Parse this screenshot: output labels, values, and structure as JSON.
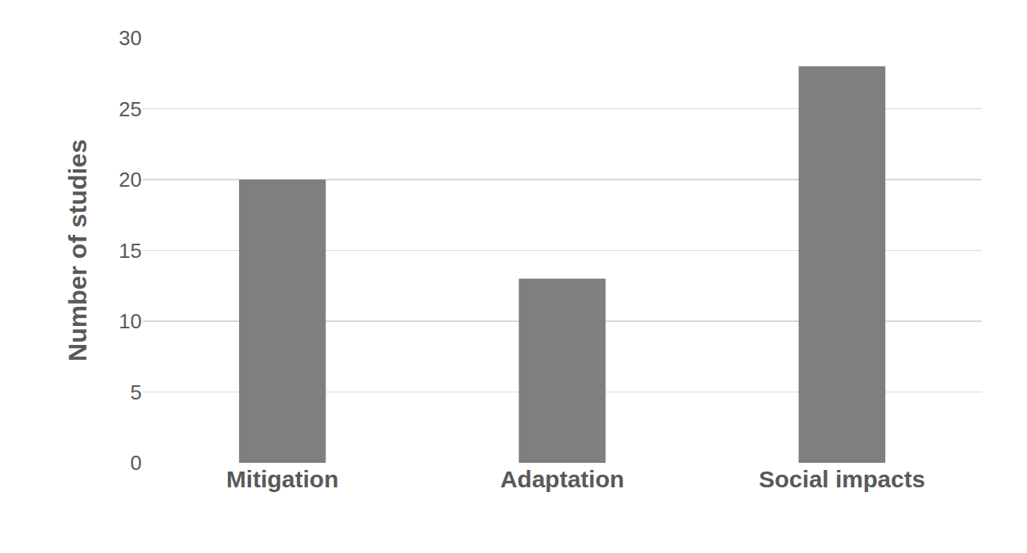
{
  "chart_data": {
    "type": "bar",
    "y_label": "Number of studies",
    "categories": [
      "Mitigation",
      "Adaptation",
      "Social impacts"
    ],
    "values": [
      20,
      13,
      28
    ],
    "color": "#7f7f7f",
    "ylim": [
      0,
      30
    ],
    "yticks": [
      0,
      5,
      10,
      15,
      20,
      25,
      30
    ],
    "grid": true
  }
}
